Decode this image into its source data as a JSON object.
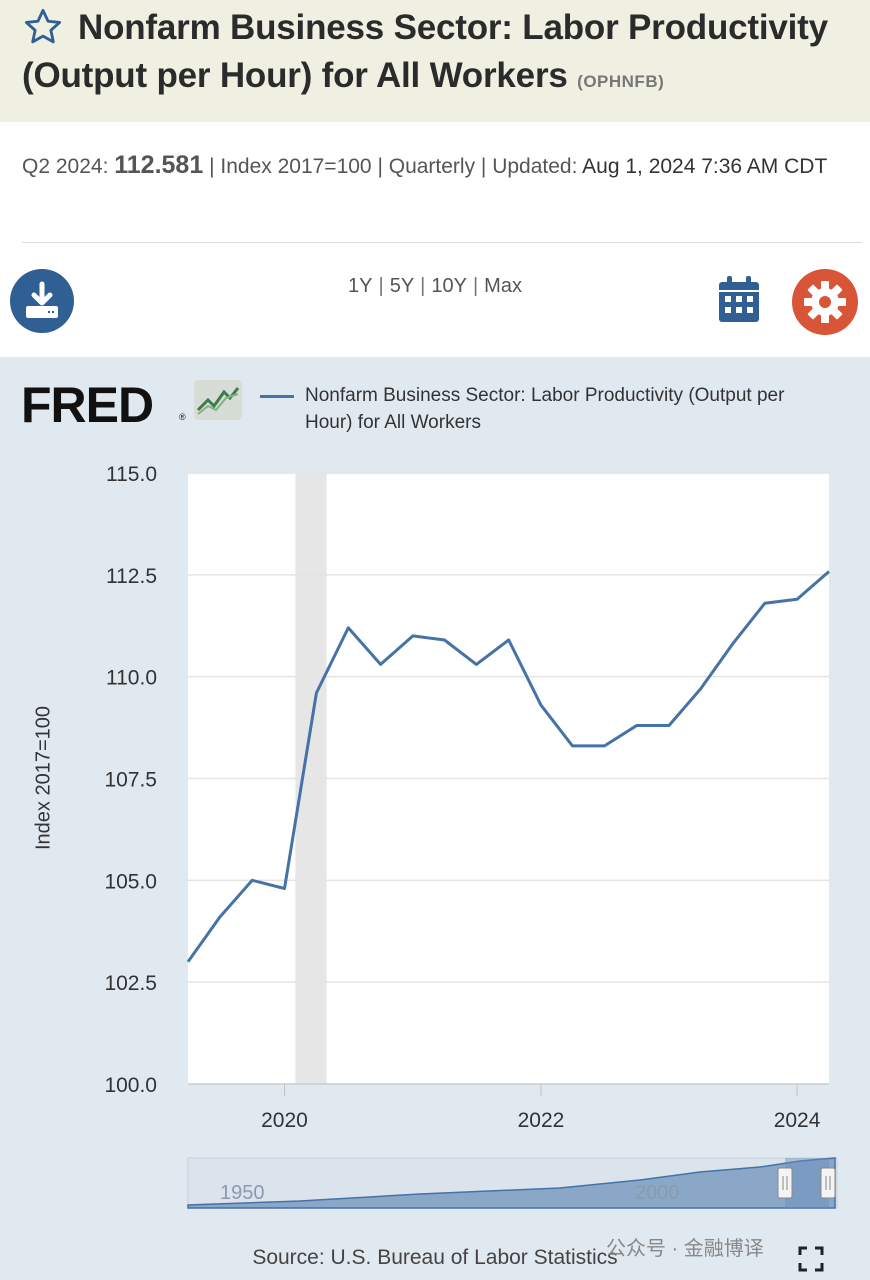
{
  "header": {
    "title": "Nonfarm Business Sector: Labor Productivity (Output per Hour) for All Workers",
    "series_id": "(OPHNFB)"
  },
  "meta": {
    "period": "Q2 2024:",
    "value": "112.581",
    "units": "| Index 2017=100 | Quarterly | Updated:",
    "updated": "Aug 1, 2024 7:36 AM CDT"
  },
  "toolbar": {
    "ranges": [
      "1Y",
      "5Y",
      "10Y",
      "Max"
    ],
    "download_icon": "download-icon",
    "calendar_icon": "calendar-icon",
    "settings_icon": "gear-icon"
  },
  "legend": {
    "logo": "FRED",
    "series_label": "Nonfarm Business Sector: Labor Productivity (Output per Hour) for All Workers"
  },
  "chart_data": {
    "type": "line",
    "ylabel": "Index 2017=100",
    "ylim": [
      100.0,
      115.0
    ],
    "yticks": [
      "100.0",
      "102.5",
      "105.0",
      "107.5",
      "110.0",
      "112.5",
      "115.0"
    ],
    "xticks": [
      "2020",
      "2022",
      "2024"
    ],
    "xlim": [
      "2019-04-01",
      "2024-04-01"
    ],
    "grid": true,
    "recession_shading": [
      "2020-02",
      "2020-04"
    ],
    "series": [
      {
        "color": "#4572a7",
        "x": [
          "2019-04-01",
          "2019-07-01",
          "2019-10-01",
          "2020-01-01",
          "2020-04-01",
          "2020-07-01",
          "2020-10-01",
          "2021-01-01",
          "2021-04-01",
          "2021-07-01",
          "2021-10-01",
          "2022-01-01",
          "2022-04-01",
          "2022-07-01",
          "2022-10-01",
          "2023-01-01",
          "2023-04-01",
          "2023-07-01",
          "2023-10-01",
          "2024-01-01",
          "2024-04-01"
        ],
        "values": [
          103.0,
          104.1,
          105.0,
          104.8,
          109.6,
          111.2,
          110.3,
          111.0,
          110.9,
          110.3,
          110.9,
          109.3,
          108.3,
          108.3,
          108.8,
          108.8,
          109.7,
          110.8,
          111.8,
          111.9,
          112.581
        ]
      }
    ],
    "navigator": {
      "labels": [
        "1950",
        "2000"
      ]
    },
    "source": "Source: U.S. Bureau of Labor Statistics"
  },
  "watermark": "公众号 · 金融博译"
}
